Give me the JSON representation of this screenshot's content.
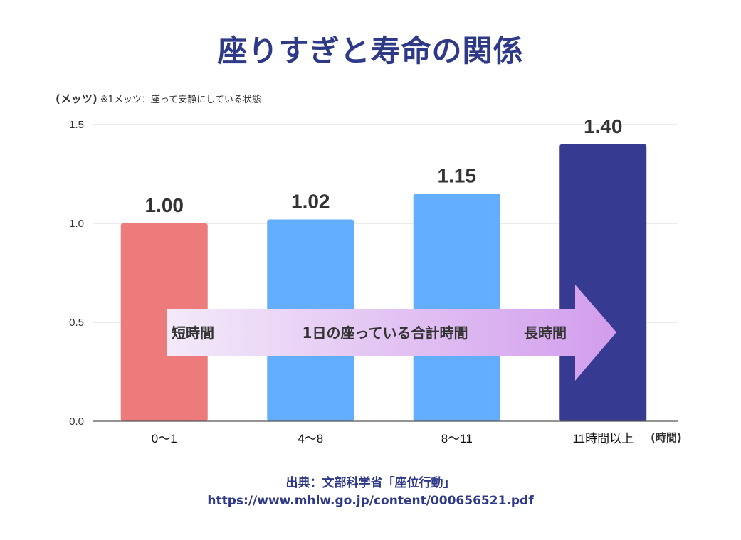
{
  "title": "座りすぎと寿命の関係",
  "y_unit": "(メッツ)",
  "y_note": "※1メッツ：座って安静にしている状態",
  "x_unit": "(時間)",
  "arrow": {
    "left_label": "短時間",
    "center_label": "1日の座っている合計時間",
    "right_label": "長時間"
  },
  "source": {
    "line1": "出典：文部科学省「座位行動」",
    "line2": "https://www.mhlw.go.jp/content/000656521.pdf"
  },
  "colors": {
    "title": "#2e3a87",
    "bar_short": "#ee7b7b",
    "bar_mid": "#62aefc",
    "bar_long": "#363a91",
    "arrow_start": "#f3eaf9",
    "arrow_end": "#d29ded",
    "grid": "#d9d9d9"
  },
  "chart_data": {
    "type": "bar",
    "categories": [
      "0〜1",
      "4〜8",
      "8〜11",
      "11時間以上"
    ],
    "values": [
      1.0,
      1.02,
      1.15,
      1.4
    ],
    "data_labels": [
      "1.00",
      "1.02",
      "1.15",
      "1.40"
    ],
    "yticks": [
      "0.0",
      "0.5",
      "1.0",
      "1.5"
    ],
    "ylim": [
      0,
      1.5
    ],
    "grid": true
  }
}
